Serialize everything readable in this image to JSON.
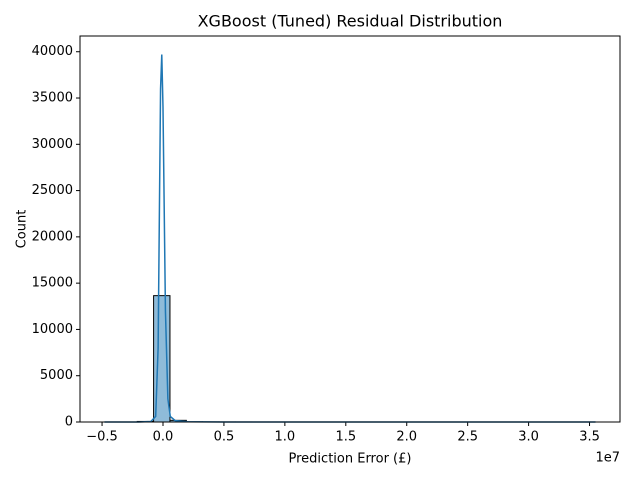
{
  "chart_data": {
    "type": "histogram",
    "title": "XGBoost (Tuned) Residual Distribution",
    "x_label": "Prediction Error (£)",
    "y_label": "Count",
    "x_offset_label": "1e7",
    "bins": [
      -4800000,
      -3457000,
      -2114000,
      -771000,
      572000,
      1915000,
      3258000,
      4601000,
      5944000,
      7287000,
      8630000,
      9973000,
      11316000,
      12659000,
      14002000,
      15345000,
      16688000,
      18031000,
      19374000,
      20717000,
      22060000,
      23403000,
      24746000,
      26089000,
      27432000,
      28775000,
      30118000,
      31461000,
      32804000,
      34147000,
      35490000
    ],
    "counts": [
      1,
      0,
      60,
      13650,
      180,
      20,
      8,
      4,
      2,
      1,
      1,
      0,
      0,
      0,
      0,
      0,
      0,
      0,
      0,
      0,
      0,
      0,
      0,
      0,
      0,
      0,
      0,
      0,
      0,
      1
    ],
    "color": "#8fbbd9",
    "edge_color": "#000000",
    "kde": {
      "color": "#1f77b4",
      "x": [
        -4800000,
        -2000000,
        -1000000,
        -600000,
        -400000,
        -200000,
        -100000,
        0,
        200000,
        400000,
        600000,
        1000000,
        2000000,
        5000000,
        35490000
      ],
      "values": [
        0,
        0,
        50,
        600,
        8000,
        36000,
        39700,
        34000,
        12000,
        2500,
        600,
        150,
        30,
        5,
        0
      ]
    },
    "xlim": [
      -6810000,
      37500000
    ],
    "ylim": [
      0,
      41700
    ],
    "xticks": [
      {
        "value": -5000000,
        "label": "−0.5"
      },
      {
        "value": 0,
        "label": "0.0"
      },
      {
        "value": 5000000,
        "label": "0.5"
      },
      {
        "value": 10000000,
        "label": "1.0"
      },
      {
        "value": 15000000,
        "label": "1.5"
      },
      {
        "value": 20000000,
        "label": "2.0"
      },
      {
        "value": 25000000,
        "label": "2.5"
      },
      {
        "value": 30000000,
        "label": "3.0"
      },
      {
        "value": 35000000,
        "label": "3.5"
      }
    ],
    "yticks": [
      0,
      5000,
      10000,
      15000,
      20000,
      25000,
      30000,
      35000,
      40000
    ]
  }
}
